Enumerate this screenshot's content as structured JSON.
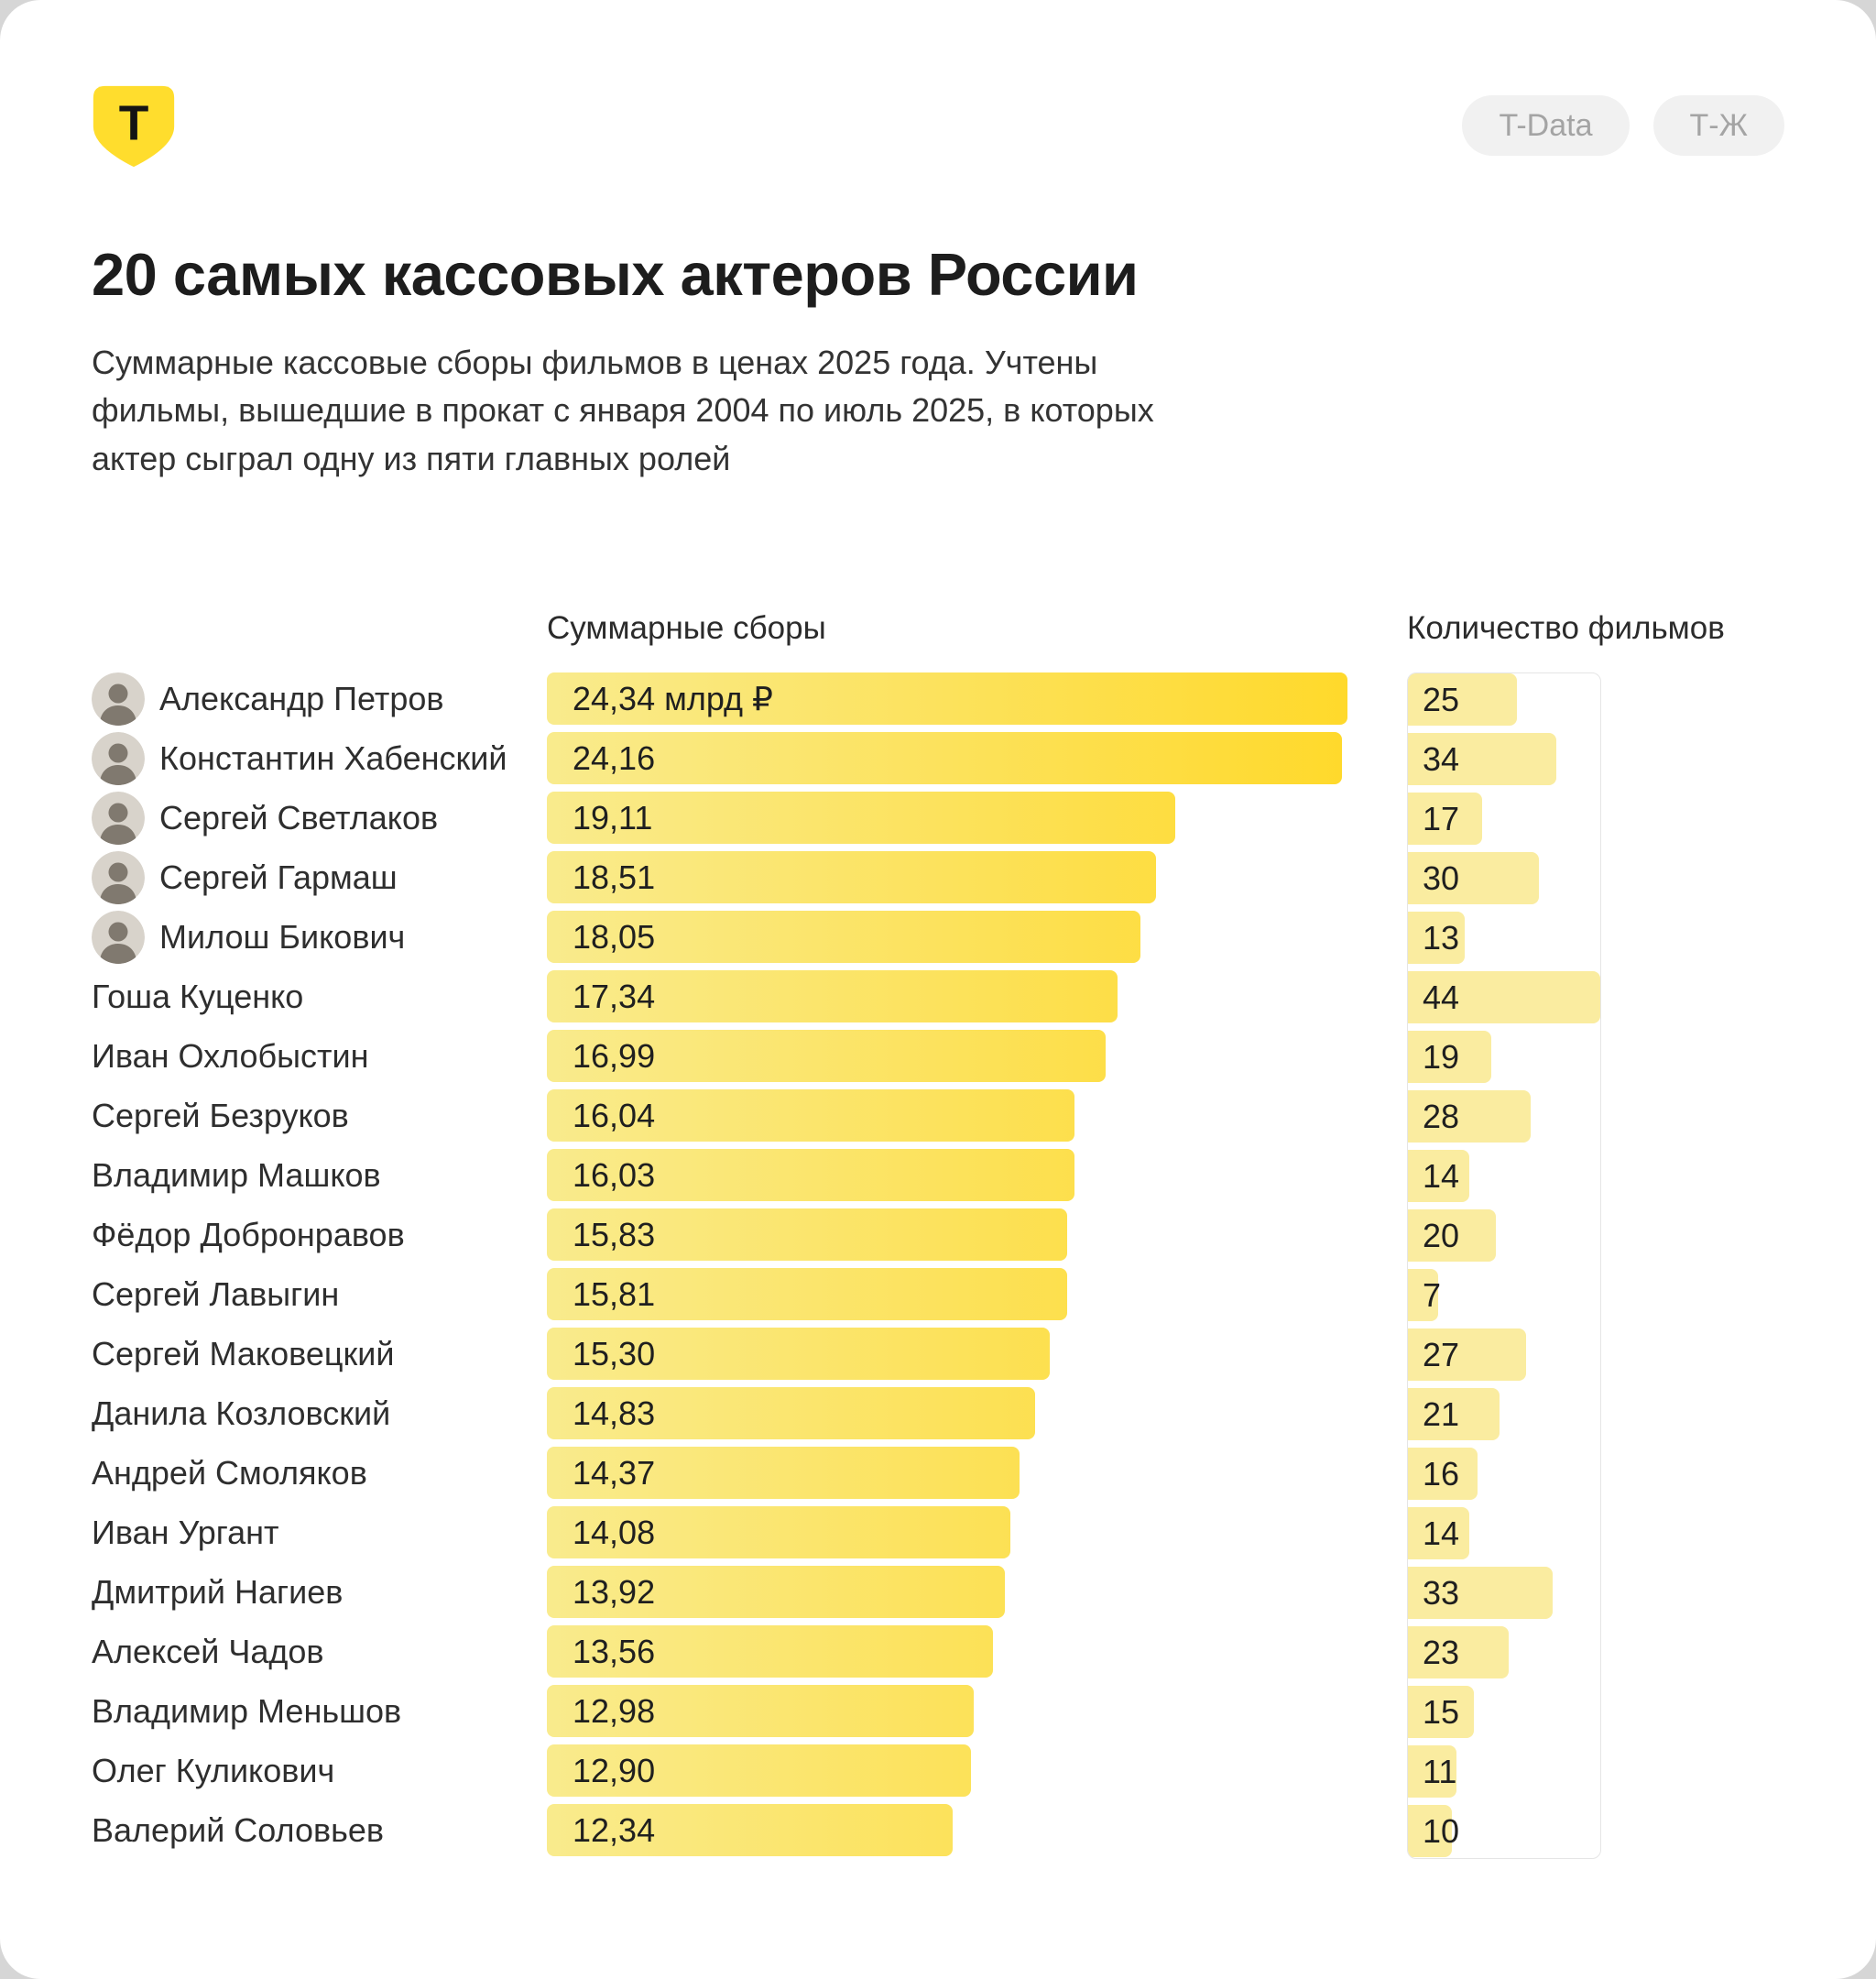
{
  "brand": {
    "logo_letter": "Т",
    "logo_color": "#FFDD2D"
  },
  "badges": [
    {
      "label": "T-Data"
    },
    {
      "label": "Т-Ж"
    }
  ],
  "title": "20 самых кассовых актеров России",
  "subtitle": "Суммарные кассовые сборы фильмов в ценах 2025 года. Учтены фильмы, вышедшие в прокат с января 2004 по июль 2025, в которых актер сыграл одну из пяти главных ролей",
  "columns": {
    "revenue_header": "Суммарные сборы",
    "films_header": "Количество фильмов"
  },
  "colors": {
    "accent": "#FFDD2D",
    "bar_gradient_start": "#F9EB8D",
    "bar_gradient_end": "#FFD92B",
    "films_bar": "#FAECA0",
    "border": "#E5E5E5"
  },
  "chart_data": {
    "type": "bar",
    "title": "20 самых кассовых актеров России",
    "unit": "млрд ₽",
    "revenue_axis_max": 24.34,
    "films_axis_max": 44,
    "legend": [
      "Суммарные сборы",
      "Количество фильмов"
    ],
    "rows": [
      {
        "name": "Александр Петров",
        "revenue": 24.34,
        "revenue_label": "24,34 млрд ₽",
        "films": 25,
        "avatar": true
      },
      {
        "name": "Константин Хабенский",
        "revenue": 24.16,
        "revenue_label": "24,16",
        "films": 34,
        "avatar": true
      },
      {
        "name": "Сергей Светлаков",
        "revenue": 19.11,
        "revenue_label": "19,11",
        "films": 17,
        "avatar": true
      },
      {
        "name": "Сергей Гармаш",
        "revenue": 18.51,
        "revenue_label": "18,51",
        "films": 30,
        "avatar": true
      },
      {
        "name": "Милош Бикович",
        "revenue": 18.05,
        "revenue_label": "18,05",
        "films": 13,
        "avatar": true
      },
      {
        "name": "Гоша Куценко",
        "revenue": 17.34,
        "revenue_label": "17,34",
        "films": 44,
        "avatar": false
      },
      {
        "name": "Иван Охлобыстин",
        "revenue": 16.99,
        "revenue_label": "16,99",
        "films": 19,
        "avatar": false
      },
      {
        "name": "Сергей Безруков",
        "revenue": 16.04,
        "revenue_label": "16,04",
        "films": 28,
        "avatar": false
      },
      {
        "name": "Владимир Машков",
        "revenue": 16.03,
        "revenue_label": "16,03",
        "films": 14,
        "avatar": false
      },
      {
        "name": "Фёдор Добронравов",
        "revenue": 15.83,
        "revenue_label": "15,83",
        "films": 20,
        "avatar": false
      },
      {
        "name": "Сергей Лавыгин",
        "revenue": 15.81,
        "revenue_label": "15,81",
        "films": 7,
        "avatar": false
      },
      {
        "name": "Сергей Маковецкий",
        "revenue": 15.3,
        "revenue_label": "15,30",
        "films": 27,
        "avatar": false
      },
      {
        "name": "Данила Козловский",
        "revenue": 14.83,
        "revenue_label": "14,83",
        "films": 21,
        "avatar": false
      },
      {
        "name": "Андрей Смоляков",
        "revenue": 14.37,
        "revenue_label": "14,37",
        "films": 16,
        "avatar": false
      },
      {
        "name": "Иван Ургант",
        "revenue": 14.08,
        "revenue_label": "14,08",
        "films": 14,
        "avatar": false
      },
      {
        "name": "Дмитрий Нагиев",
        "revenue": 13.92,
        "revenue_label": "13,92",
        "films": 33,
        "avatar": false
      },
      {
        "name": "Алексей Чадов",
        "revenue": 13.56,
        "revenue_label": "13,56",
        "films": 23,
        "avatar": false
      },
      {
        "name": "Владимир Меньшов",
        "revenue": 12.98,
        "revenue_label": "12,98",
        "films": 15,
        "avatar": false
      },
      {
        "name": "Олег Куликович",
        "revenue": 12.9,
        "revenue_label": "12,90",
        "films": 11,
        "avatar": false
      },
      {
        "name": "Валерий Соловьев",
        "revenue": 12.34,
        "revenue_label": "12,34",
        "films": 10,
        "avatar": false
      }
    ]
  }
}
